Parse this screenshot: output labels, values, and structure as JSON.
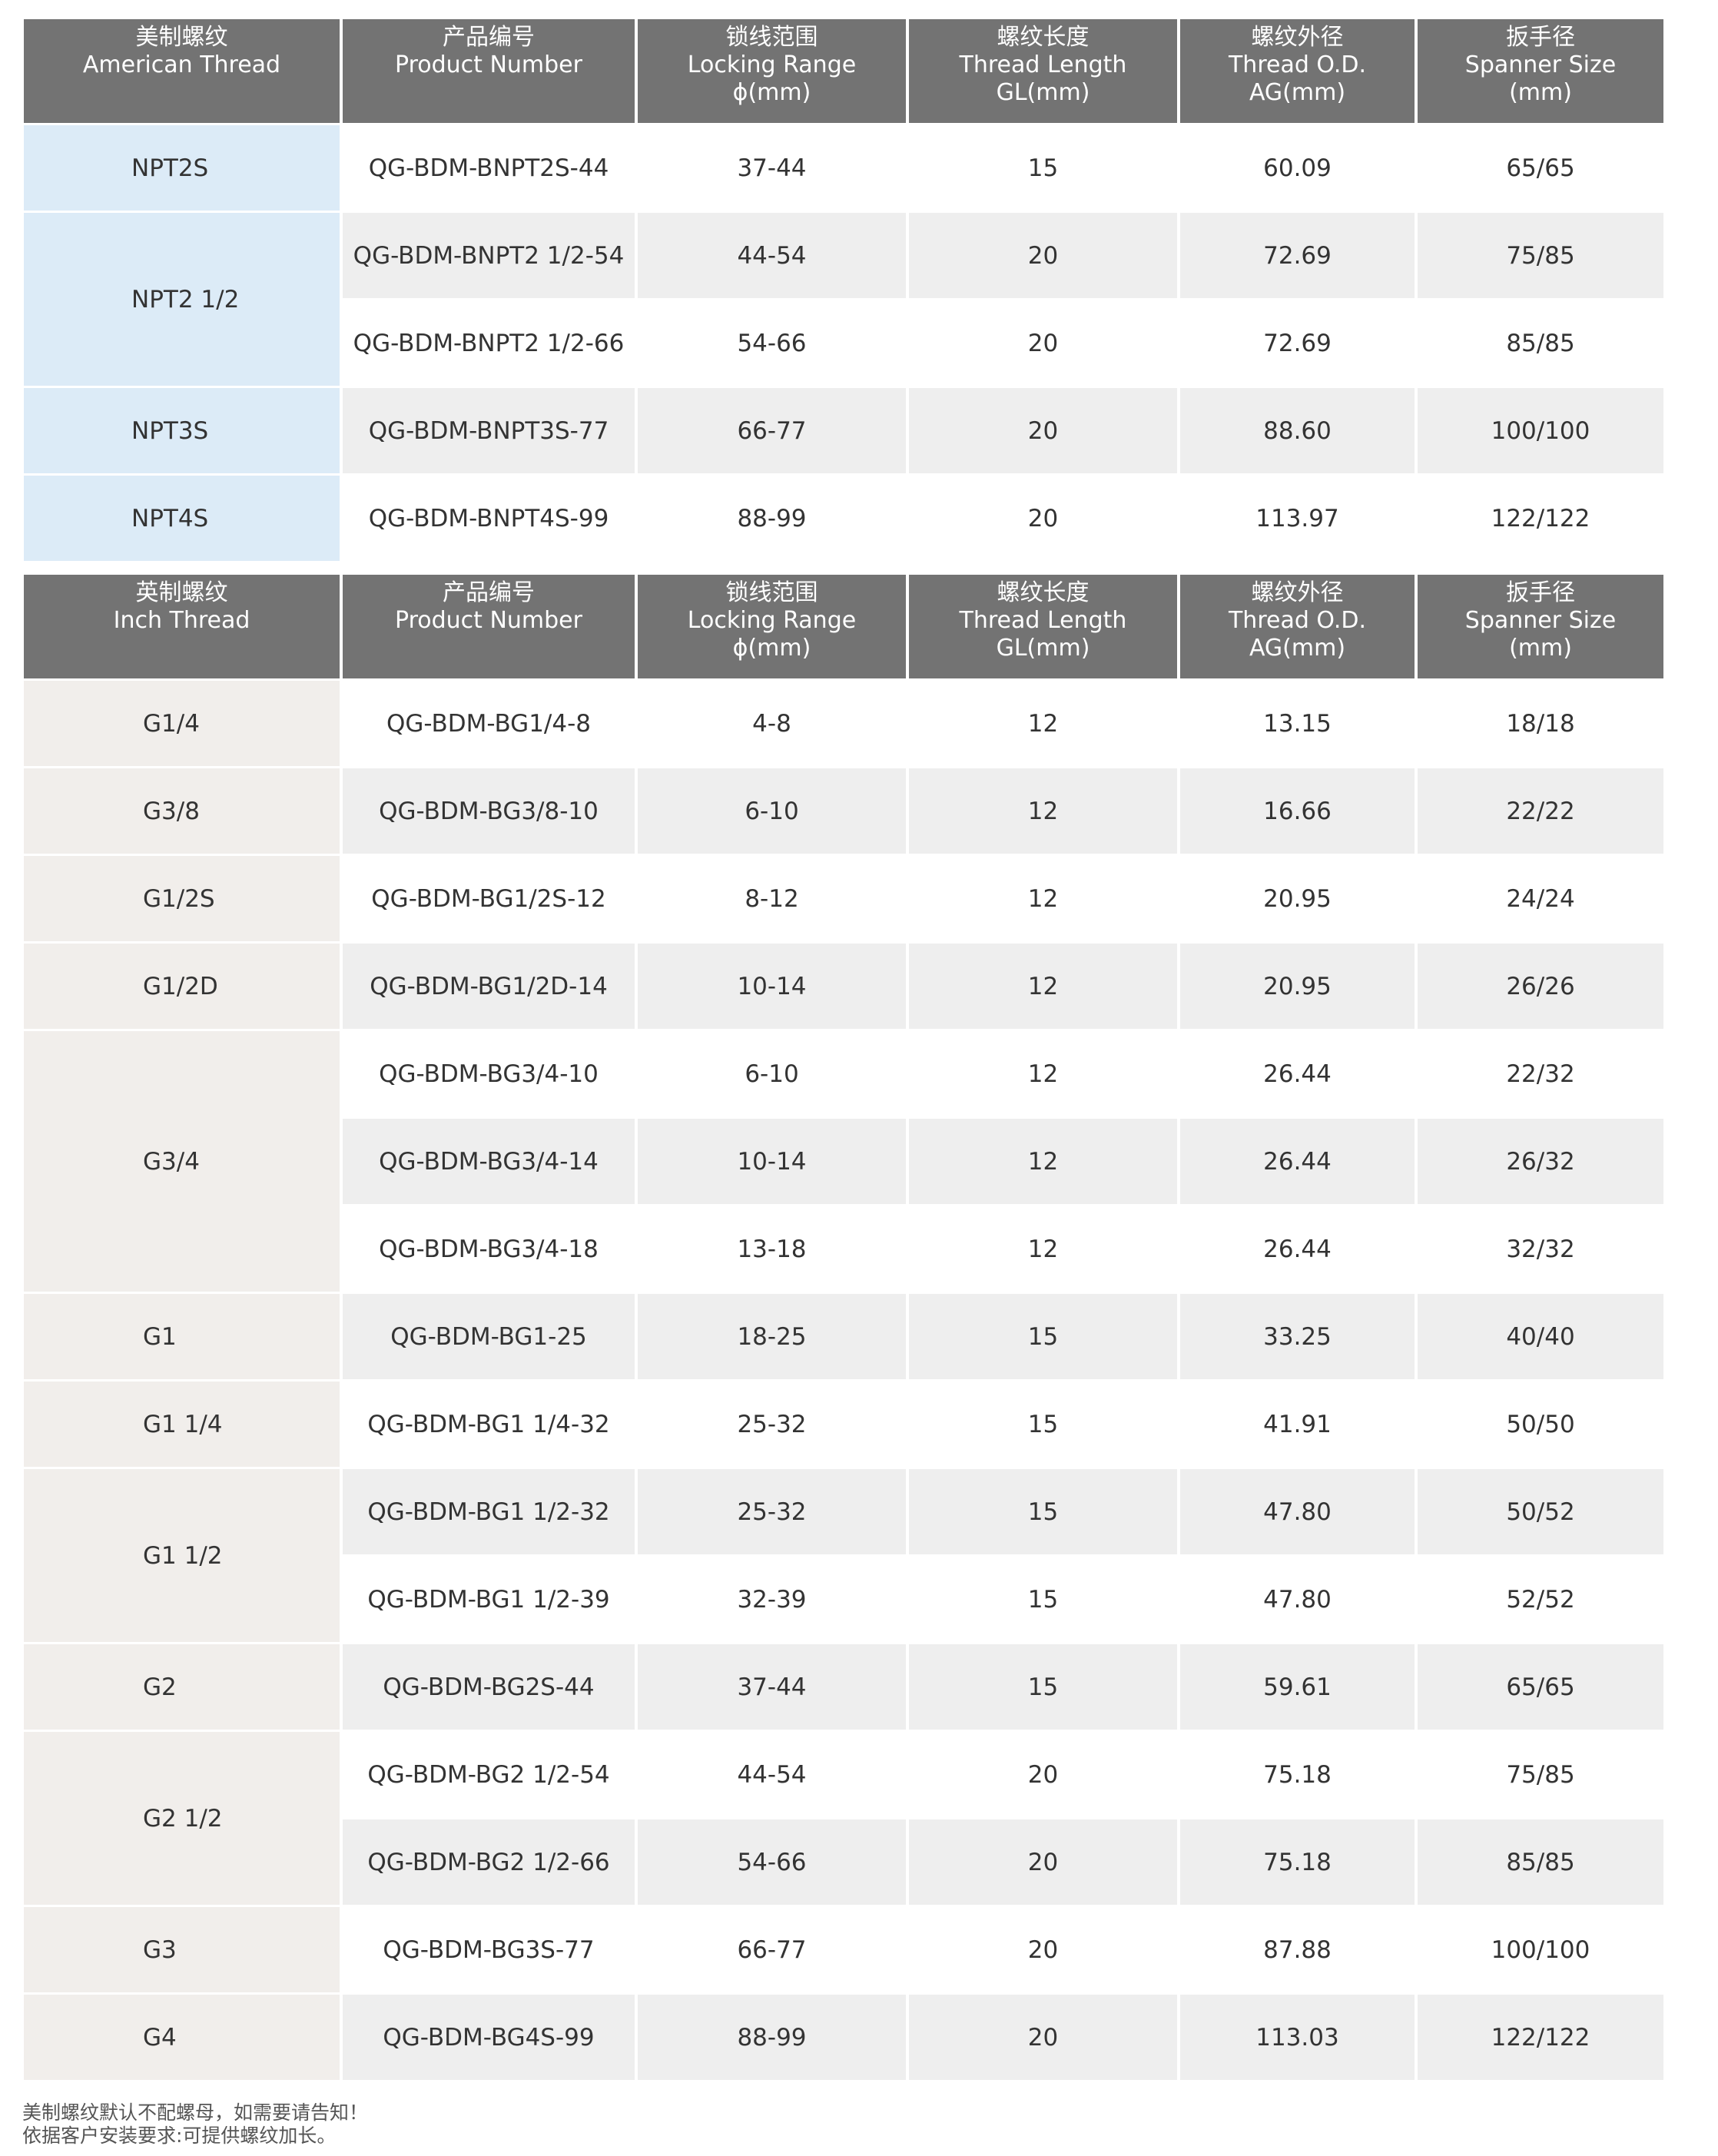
{
  "tables": [
    {
      "headers": [
        [
          "美制螺纹",
          "American Thread"
        ],
        [
          "产品编号",
          "Product Number"
        ],
        [
          "锁线范围",
          "Locking Range",
          "ϕ(mm)"
        ],
        [
          "螺纹长度",
          "Thread Length",
          "GL(mm)"
        ],
        [
          "螺纹外径",
          "Thread O.D.",
          "AG(mm)"
        ],
        [
          "扳手径",
          "Spanner Size",
          "(mm)"
        ]
      ],
      "groups": [
        {
          "thread": "NPT2S",
          "rows": [
            [
              "QG-BDM-BNPT2S-44",
              "37-44",
              "15",
              "60.09",
              "65/65"
            ]
          ]
        },
        {
          "thread": "NPT2 1/2",
          "rows": [
            [
              "QG-BDM-BNPT2 1/2-54",
              "44-54",
              "20",
              "72.69",
              "75/85"
            ],
            [
              "QG-BDM-BNPT2 1/2-66",
              "54-66",
              "20",
              "72.69",
              "85/85"
            ]
          ]
        },
        {
          "thread": "NPT3S",
          "rows": [
            [
              "QG-BDM-BNPT3S-77",
              "66-77",
              "20",
              "88.60",
              "100/100"
            ]
          ]
        },
        {
          "thread": "NPT4S",
          "rows": [
            [
              "QG-BDM-BNPT4S-99",
              "88-99",
              "20",
              "113.97",
              "122/122"
            ]
          ]
        }
      ]
    },
    {
      "headers": [
        [
          "英制螺纹",
          "Inch Thread"
        ],
        [
          "产品编号",
          "Product Number"
        ],
        [
          "锁线范围",
          "Locking Range",
          "ϕ(mm)"
        ],
        [
          "螺纹长度",
          "Thread Length",
          "GL(mm)"
        ],
        [
          "螺纹外径",
          "Thread O.D.",
          "AG(mm)"
        ],
        [
          "扳手径",
          "Spanner Size",
          "(mm)"
        ]
      ],
      "groups": [
        {
          "thread": "G1/4",
          "rows": [
            [
              "QG-BDM-BG1/4-8",
              "4-8",
              "12",
              "13.15",
              "18/18"
            ]
          ]
        },
        {
          "thread": "G3/8",
          "rows": [
            [
              "QG-BDM-BG3/8-10",
              "6-10",
              "12",
              "16.66",
              "22/22"
            ]
          ]
        },
        {
          "thread": "G1/2S",
          "rows": [
            [
              "QG-BDM-BG1/2S-12",
              "8-12",
              "12",
              "20.95",
              "24/24"
            ]
          ]
        },
        {
          "thread": "G1/2D",
          "rows": [
            [
              "QG-BDM-BG1/2D-14",
              "10-14",
              "12",
              "20.95",
              "26/26"
            ]
          ]
        },
        {
          "thread": "G3/4",
          "rows": [
            [
              "QG-BDM-BG3/4-10",
              "6-10",
              "12",
              "26.44",
              "22/32"
            ],
            [
              "QG-BDM-BG3/4-14",
              "10-14",
              "12",
              "26.44",
              "26/32"
            ],
            [
              "QG-BDM-BG3/4-18",
              "13-18",
              "12",
              "26.44",
              "32/32"
            ]
          ]
        },
        {
          "thread": "G1",
          "rows": [
            [
              "QG-BDM-BG1-25",
              "18-25",
              "15",
              "33.25",
              "40/40"
            ]
          ]
        },
        {
          "thread": "G1 1/4",
          "rows": [
            [
              "QG-BDM-BG1 1/4-32",
              "25-32",
              "15",
              "41.91",
              "50/50"
            ]
          ]
        },
        {
          "thread": "G1 1/2",
          "rows": [
            [
              "QG-BDM-BG1 1/2-32",
              "25-32",
              "15",
              "47.80",
              "50/52"
            ],
            [
              "QG-BDM-BG1 1/2-39",
              "32-39",
              "15",
              "47.80",
              "52/52"
            ]
          ]
        },
        {
          "thread": "G2",
          "rows": [
            [
              "QG-BDM-BG2S-44",
              "37-44",
              "15",
              "59.61",
              "65/65"
            ]
          ]
        },
        {
          "thread": "G2 1/2",
          "rows": [
            [
              "QG-BDM-BG2 1/2-54",
              "44-54",
              "20",
              "75.18",
              "75/85"
            ],
            [
              "QG-BDM-BG2 1/2-66",
              "54-66",
              "20",
              "75.18",
              "85/85"
            ]
          ]
        },
        {
          "thread": "G3",
          "rows": [
            [
              "QG-BDM-BG3S-77",
              "66-77",
              "20",
              "87.88",
              "100/100"
            ]
          ]
        },
        {
          "thread": "G4",
          "rows": [
            [
              "QG-BDM-BG4S-99",
              "88-99",
              "20",
              "113.03",
              "122/122"
            ]
          ]
        }
      ]
    }
  ],
  "notes": [
    "美制螺纹默认不配螺母，如需要请告知！",
    "依据客户安装要求:可提供螺纹加长。"
  ],
  "colors": {
    "header_bg": "#737373",
    "american_thread_bg": "#dcebf7",
    "inch_thread_bg": "#f1eeeb",
    "stripe": "#eeeeee"
  }
}
